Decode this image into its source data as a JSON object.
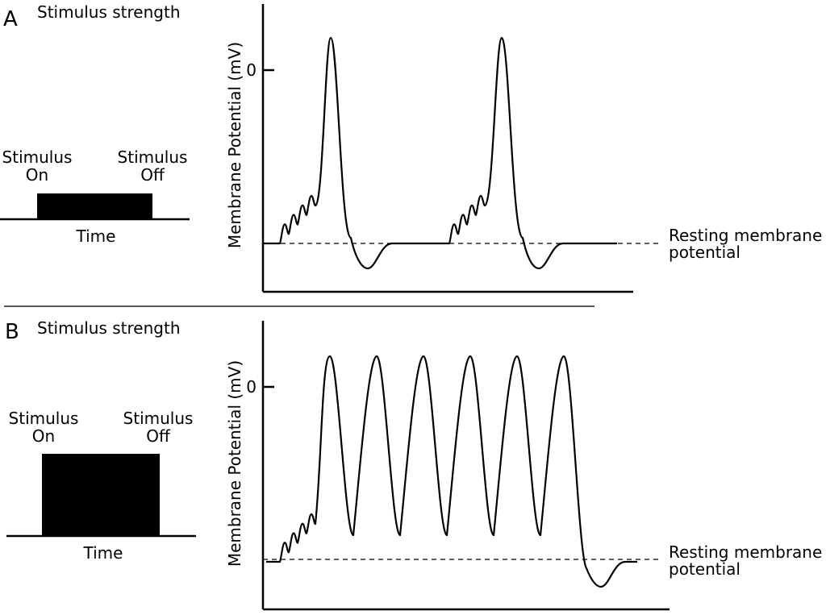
{
  "panels": [
    {
      "panel_letter": "A",
      "stimulus_title": "Stimulus strength",
      "stimulus_on_line1": "Stimulus",
      "stimulus_on_line2": "On",
      "stimulus_off_line1": "Stimulus",
      "stimulus_off_line2": "Off",
      "time_label": "Time",
      "y_axis_label": "Membrane Potential (mV)",
      "zero_tick_label": "0",
      "resting_label_line1": "Resting membrane",
      "resting_label_line2": "potential",
      "action_potential_count": 2,
      "stimulus_strength": "low"
    },
    {
      "panel_letter": "B",
      "stimulus_title": "Stimulus strength",
      "stimulus_on_line1": "Stimulus",
      "stimulus_on_line2": "On",
      "stimulus_off_line1": "Stimulus",
      "stimulus_off_line2": "Off",
      "time_label": "Time",
      "y_axis_label": "Membrane Potential (mV)",
      "zero_tick_label": "0",
      "resting_label_line1": "Resting membrane",
      "resting_label_line2": "potential",
      "action_potential_count": 6,
      "stimulus_strength": "high"
    }
  ]
}
